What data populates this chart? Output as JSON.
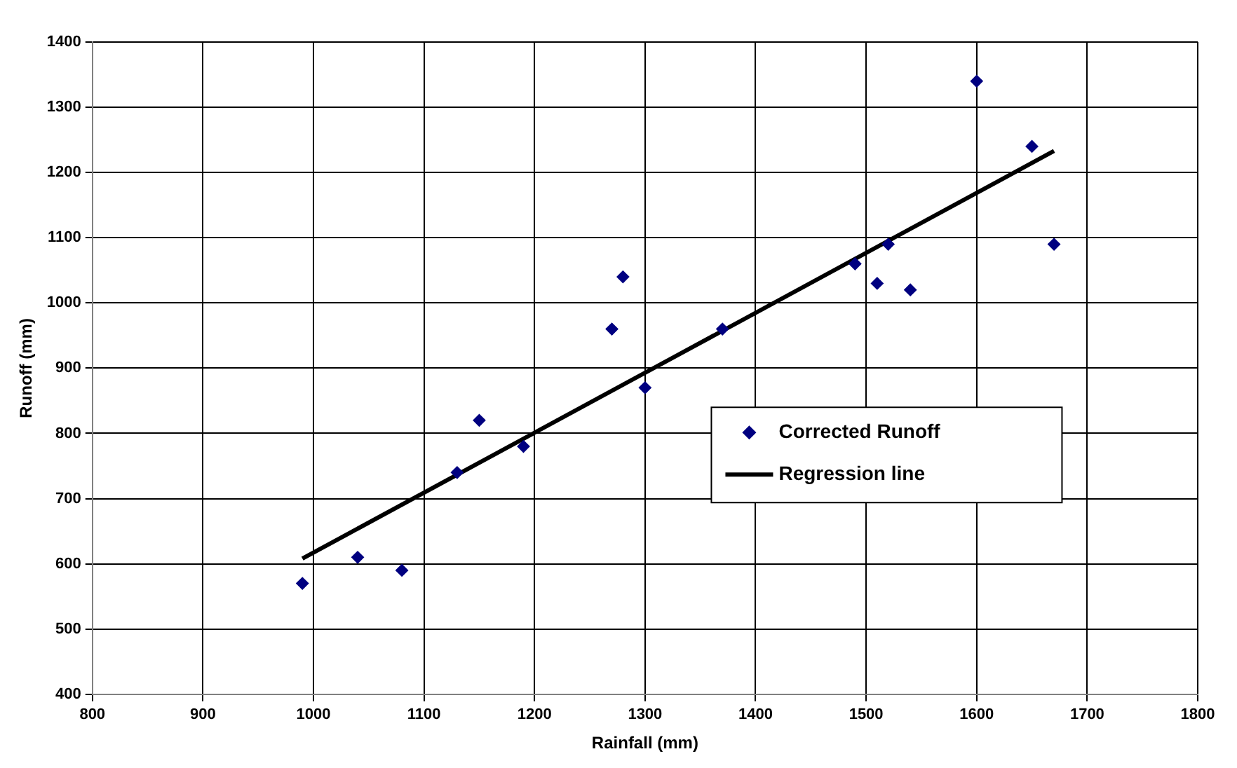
{
  "chart_data": {
    "type": "scatter",
    "xlabel": "Rainfall (mm)",
    "ylabel": "Runoff (mm)",
    "xlim": [
      800,
      1800
    ],
    "xticks": [
      800,
      900,
      1000,
      1100,
      1200,
      1300,
      1400,
      1500,
      1600,
      1700,
      1800
    ],
    "ylim": [
      400,
      1400
    ],
    "yticks": [
      400,
      500,
      600,
      700,
      800,
      900,
      1000,
      1100,
      1200,
      1300,
      1400
    ],
    "grid": true,
    "legend": "right",
    "marker": "diamond",
    "series": [
      {
        "name": "Corrected Runoff",
        "type": "scatter",
        "color": "#000080",
        "x": [
          990,
          1040,
          1080,
          1130,
          1150,
          1190,
          1270,
          1280,
          1300,
          1370,
          1490,
          1510,
          1520,
          1540,
          1600,
          1650,
          1670
        ],
        "values": [
          570,
          610,
          590,
          740,
          820,
          780,
          960,
          1040,
          870,
          960,
          1060,
          1030,
          1090,
          1020,
          1340,
          1240,
          1090
        ]
      },
      {
        "name": "Regression line",
        "type": "line",
        "color": "#000000",
        "line_style": "solid",
        "marker": "none",
        "x": [
          990,
          1670
        ],
        "values": [
          608,
          1233
        ]
      }
    ]
  }
}
